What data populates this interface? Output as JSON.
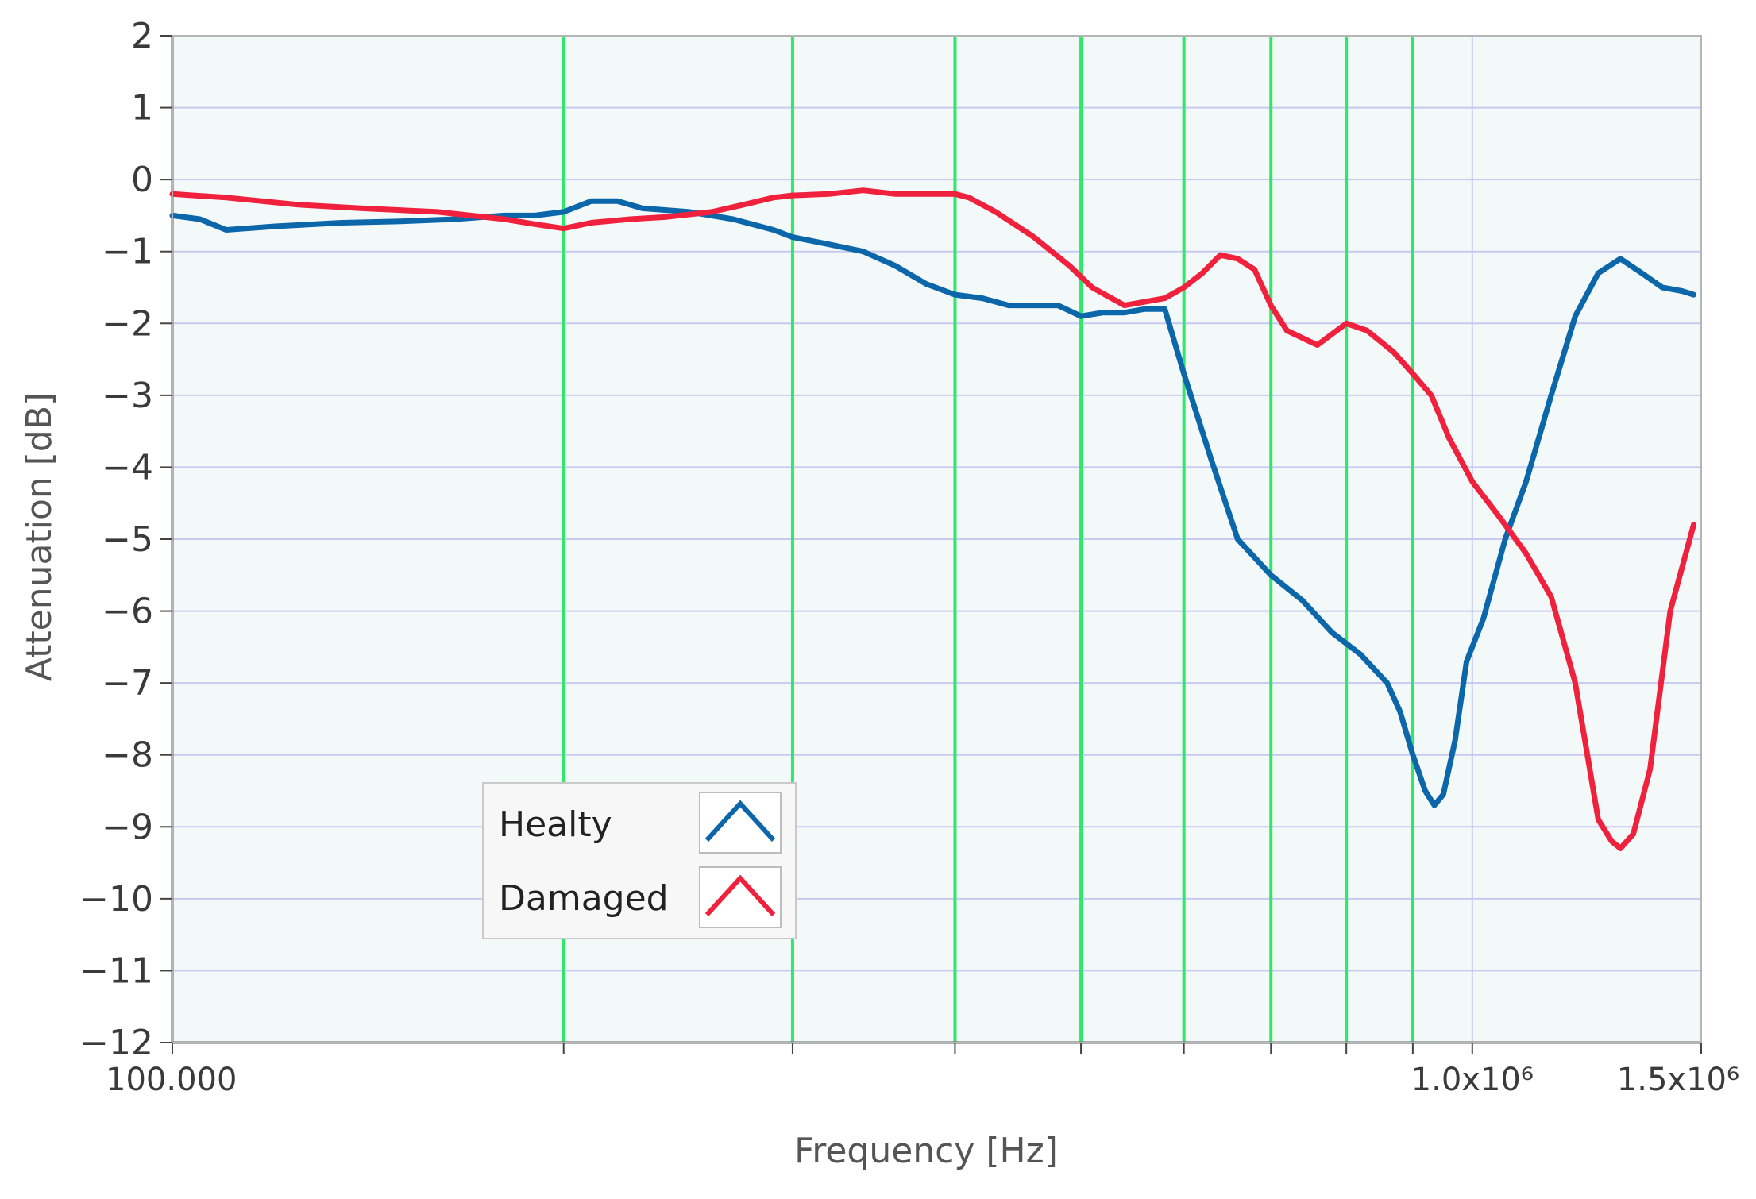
{
  "chart_data": {
    "type": "line",
    "xlabel": "Frequency [Hz]",
    "ylabel": "Attenuation [dB]",
    "xscale": "log",
    "xlim": [
      100000,
      1500000
    ],
    "ylim": [
      -12,
      2
    ],
    "yticks": [
      2,
      1,
      0,
      -1,
      -2,
      -3,
      -4,
      -5,
      -6,
      -7,
      -8,
      -9,
      -10,
      -11,
      -12
    ],
    "ytick_labels": [
      "2",
      "1",
      "0",
      "-1",
      "-2",
      "-3",
      "-4",
      "-5",
      "-6",
      "-7",
      "-8",
      "-9",
      "-10",
      "-11",
      "-12"
    ],
    "xticks": [
      {
        "value": 100000,
        "label": "100.000"
      },
      {
        "value": 200000,
        "label": ""
      },
      {
        "value": 300000,
        "label": ""
      },
      {
        "value": 400000,
        "label": ""
      },
      {
        "value": 500000,
        "label": ""
      },
      {
        "value": 600000,
        "label": ""
      },
      {
        "value": 700000,
        "label": ""
      },
      {
        "value": 800000,
        "label": ""
      },
      {
        "value": 900000,
        "label": ""
      },
      {
        "value": 1000000,
        "label": "1.0x10⁶"
      },
      {
        "value": 1500000,
        "label": "1.5x10⁶"
      }
    ],
    "grid": true,
    "green_markers_hz": [
      200000,
      300000,
      400000,
      500000,
      600000,
      700000,
      800000,
      900000
    ],
    "legend_placement": "lower-left",
    "colors": {
      "plot_background": "#f3f9f9",
      "grid": "#c7c9f0",
      "markers": "#2ee86a",
      "healty": "#0b66aa",
      "damaged": "#f0213c"
    },
    "series": [
      {
        "name": "Healty",
        "color": "#0b66aa",
        "points": [
          [
            100000,
            -0.5
          ],
          [
            105000,
            -0.55
          ],
          [
            110000,
            -0.7
          ],
          [
            120000,
            -0.65
          ],
          [
            135000,
            -0.6
          ],
          [
            150000,
            -0.58
          ],
          [
            165000,
            -0.55
          ],
          [
            180000,
            -0.5
          ],
          [
            190000,
            -0.5
          ],
          [
            200000,
            -0.45
          ],
          [
            210000,
            -0.3
          ],
          [
            220000,
            -0.3
          ],
          [
            230000,
            -0.4
          ],
          [
            250000,
            -0.45
          ],
          [
            270000,
            -0.55
          ],
          [
            290000,
            -0.7
          ],
          [
            300000,
            -0.8
          ],
          [
            320000,
            -0.9
          ],
          [
            340000,
            -1.0
          ],
          [
            360000,
            -1.2
          ],
          [
            380000,
            -1.45
          ],
          [
            400000,
            -1.6
          ],
          [
            420000,
            -1.65
          ],
          [
            440000,
            -1.75
          ],
          [
            460000,
            -1.75
          ],
          [
            480000,
            -1.75
          ],
          [
            500000,
            -1.9
          ],
          [
            520000,
            -1.85
          ],
          [
            540000,
            -1.85
          ],
          [
            560000,
            -1.8
          ],
          [
            580000,
            -1.8
          ],
          [
            600000,
            -2.7
          ],
          [
            630000,
            -3.9
          ],
          [
            660000,
            -5.0
          ],
          [
            700000,
            -5.5
          ],
          [
            740000,
            -5.85
          ],
          [
            780000,
            -6.3
          ],
          [
            820000,
            -6.6
          ],
          [
            860000,
            -7.0
          ],
          [
            880000,
            -7.4
          ],
          [
            900000,
            -8.0
          ],
          [
            920000,
            -8.5
          ],
          [
            935000,
            -8.7
          ],
          [
            950000,
            -8.55
          ],
          [
            970000,
            -7.8
          ],
          [
            990000,
            -6.7
          ],
          [
            1020000,
            -6.1
          ],
          [
            1060000,
            -5.0
          ],
          [
            1100000,
            -4.2
          ],
          [
            1150000,
            -3.0
          ],
          [
            1200000,
            -1.9
          ],
          [
            1250000,
            -1.3
          ],
          [
            1300000,
            -1.1
          ],
          [
            1350000,
            -1.3
          ],
          [
            1400000,
            -1.5
          ],
          [
            1450000,
            -1.55
          ],
          [
            1480000,
            -1.6
          ]
        ]
      },
      {
        "name": "Damaged",
        "color": "#f0213c",
        "points": [
          [
            100000,
            -0.2
          ],
          [
            110000,
            -0.25
          ],
          [
            125000,
            -0.35
          ],
          [
            140000,
            -0.4
          ],
          [
            160000,
            -0.45
          ],
          [
            180000,
            -0.55
          ],
          [
            190000,
            -0.62
          ],
          [
            200000,
            -0.68
          ],
          [
            210000,
            -0.6
          ],
          [
            225000,
            -0.55
          ],
          [
            240000,
            -0.52
          ],
          [
            260000,
            -0.45
          ],
          [
            275000,
            -0.35
          ],
          [
            290000,
            -0.25
          ],
          [
            300000,
            -0.22
          ],
          [
            320000,
            -0.2
          ],
          [
            340000,
            -0.15
          ],
          [
            360000,
            -0.2
          ],
          [
            380000,
            -0.2
          ],
          [
            400000,
            -0.2
          ],
          [
            410000,
            -0.25
          ],
          [
            430000,
            -0.45
          ],
          [
            460000,
            -0.8
          ],
          [
            490000,
            -1.2
          ],
          [
            510000,
            -1.5
          ],
          [
            540000,
            -1.75
          ],
          [
            560000,
            -1.7
          ],
          [
            580000,
            -1.65
          ],
          [
            600000,
            -1.5
          ],
          [
            620000,
            -1.3
          ],
          [
            640000,
            -1.05
          ],
          [
            660000,
            -1.1
          ],
          [
            680000,
            -1.25
          ],
          [
            700000,
            -1.75
          ],
          [
            720000,
            -2.1
          ],
          [
            760000,
            -2.3
          ],
          [
            800000,
            -2.0
          ],
          [
            830000,
            -2.1
          ],
          [
            870000,
            -2.4
          ],
          [
            900000,
            -2.7
          ],
          [
            930000,
            -3.0
          ],
          [
            960000,
            -3.6
          ],
          [
            1000000,
            -4.2
          ],
          [
            1050000,
            -4.7
          ],
          [
            1100000,
            -5.2
          ],
          [
            1150000,
            -5.8
          ],
          [
            1200000,
            -7.0
          ],
          [
            1250000,
            -8.9
          ],
          [
            1280000,
            -9.2
          ],
          [
            1300000,
            -9.3
          ],
          [
            1330000,
            -9.1
          ],
          [
            1370000,
            -8.2
          ],
          [
            1420000,
            -6.0
          ],
          [
            1480000,
            -4.8
          ]
        ]
      }
    ]
  }
}
